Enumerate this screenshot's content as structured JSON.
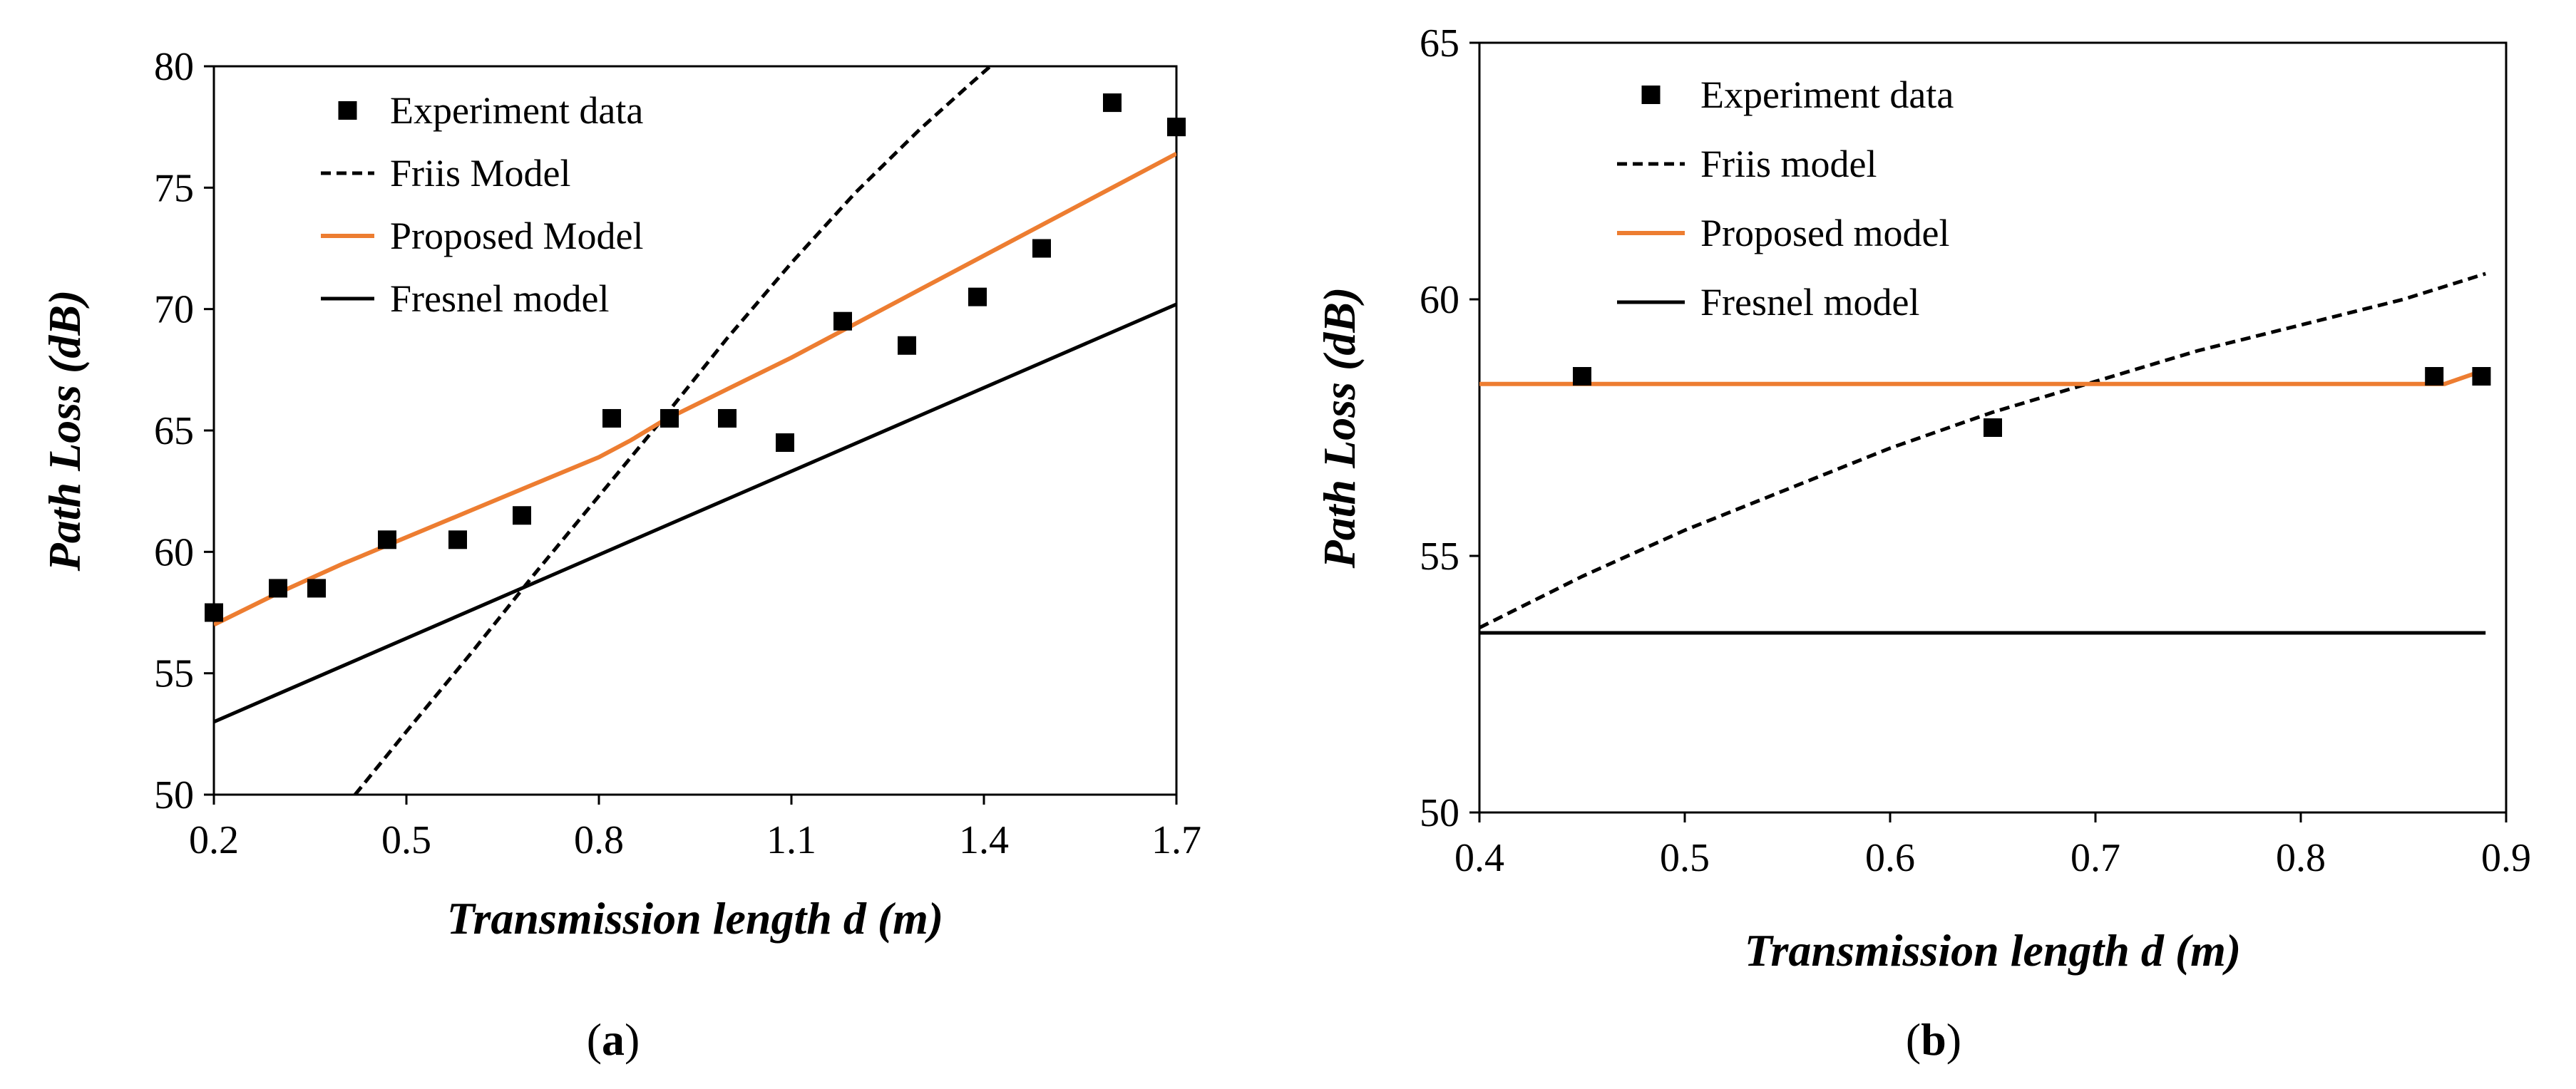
{
  "chart_data": [
    {
      "panel": "(a)",
      "panel_letter": "a",
      "type": "line",
      "xlabel": "Transmission length d (m)",
      "ylabel": "Path  Loss (dB)",
      "xlim": [
        0.2,
        1.7
      ],
      "ylim": [
        50,
        80
      ],
      "x_ticks": [
        0.2,
        0.5,
        0.8,
        1.1,
        1.4,
        1.7
      ],
      "y_ticks": [
        50,
        55,
        60,
        65,
        70,
        75,
        80
      ],
      "legend_position": "top-left",
      "legend": [
        "Experiment data",
        "Friis Model",
        "Proposed Model",
        "Fresnel model"
      ],
      "series": [
        {
          "name": "Experiment data",
          "style": "markers",
          "color": "#000000",
          "points": [
            [
              0.2,
              57.5
            ],
            [
              0.3,
              58.5
            ],
            [
              0.36,
              58.5
            ],
            [
              0.47,
              60.5
            ],
            [
              0.58,
              60.5
            ],
            [
              0.68,
              61.5
            ],
            [
              0.82,
              65.5
            ],
            [
              0.91,
              65.5
            ],
            [
              1.0,
              65.5
            ],
            [
              1.09,
              64.5
            ],
            [
              1.18,
              69.5
            ],
            [
              1.28,
              68.5
            ],
            [
              1.39,
              70.5
            ],
            [
              1.49,
              72.5
            ],
            [
              1.6,
              78.5
            ],
            [
              1.7,
              77.5
            ]
          ]
        },
        {
          "name": "Friis Model",
          "style": "dashed",
          "color": "#000000",
          "points": [
            [
              0.42,
              50.0
            ],
            [
              0.5,
              52.6
            ],
            [
              0.6,
              55.8
            ],
            [
              0.7,
              59.1
            ],
            [
              0.8,
              62.3
            ],
            [
              0.9,
              65.5
            ],
            [
              1.0,
              68.8
            ],
            [
              1.1,
              71.9
            ],
            [
              1.2,
              74.8
            ],
            [
              1.3,
              77.4
            ],
            [
              1.38,
              79.3
            ],
            [
              1.41,
              80.0
            ]
          ]
        },
        {
          "name": "Proposed Model",
          "style": "solid",
          "color": "#ED7D31",
          "points": [
            [
              0.2,
              57.0
            ],
            [
              0.3,
              58.3
            ],
            [
              0.4,
              59.5
            ],
            [
              0.5,
              60.6
            ],
            [
              0.6,
              61.7
            ],
            [
              0.7,
              62.8
            ],
            [
              0.8,
              63.9
            ],
            [
              0.85,
              64.6
            ],
            [
              0.9,
              65.4
            ],
            [
              1.0,
              66.7
            ],
            [
              1.1,
              68.0
            ],
            [
              1.2,
              69.4
            ],
            [
              1.3,
              70.8
            ],
            [
              1.4,
              72.2
            ],
            [
              1.5,
              73.6
            ],
            [
              1.6,
              75.0
            ],
            [
              1.7,
              76.4
            ]
          ]
        },
        {
          "name": "Fresnel model",
          "style": "solid",
          "color": "#000000",
          "points": [
            [
              0.2,
              53.0
            ],
            [
              1.7,
              70.2
            ]
          ]
        }
      ]
    },
    {
      "panel": "(b)",
      "panel_letter": "b",
      "type": "line",
      "xlabel": "Transmission length d (m)",
      "ylabel": "Path  Loss (dB)",
      "xlim": [
        0.4,
        0.9
      ],
      "ylim": [
        50,
        65
      ],
      "x_ticks": [
        0.4,
        0.5,
        0.6,
        0.7,
        0.8,
        0.9
      ],
      "y_ticks": [
        50,
        55,
        60,
        65
      ],
      "legend_position": "top-left",
      "legend": [
        "Experiment data",
        "Friis model",
        "Proposed model",
        "Fresnel model"
      ],
      "series": [
        {
          "name": "Experiment data",
          "style": "markers",
          "color": "#000000",
          "points": [
            [
              0.45,
              58.5
            ],
            [
              0.65,
              57.5
            ],
            [
              0.865,
              58.5
            ],
            [
              0.888,
              58.5
            ]
          ]
        },
        {
          "name": "Friis model",
          "style": "dashed",
          "color": "#000000",
          "points": [
            [
              0.4,
              53.6
            ],
            [
              0.45,
              54.6
            ],
            [
              0.5,
              55.5
            ],
            [
              0.55,
              56.3
            ],
            [
              0.6,
              57.1
            ],
            [
              0.65,
              57.8
            ],
            [
              0.7,
              58.4
            ],
            [
              0.75,
              59.0
            ],
            [
              0.8,
              59.5
            ],
            [
              0.85,
              60.0
            ],
            [
              0.89,
              60.5
            ]
          ]
        },
        {
          "name": "Proposed model",
          "style": "solid",
          "color": "#ED7D31",
          "points": [
            [
              0.4,
              58.35
            ],
            [
              0.8,
              58.35
            ],
            [
              0.87,
              58.35
            ],
            [
              0.888,
              58.6
            ]
          ]
        },
        {
          "name": "Fresnel model",
          "style": "solid",
          "color": "#000000",
          "points": [
            [
              0.4,
              53.5
            ],
            [
              0.89,
              53.5
            ]
          ]
        }
      ]
    }
  ]
}
